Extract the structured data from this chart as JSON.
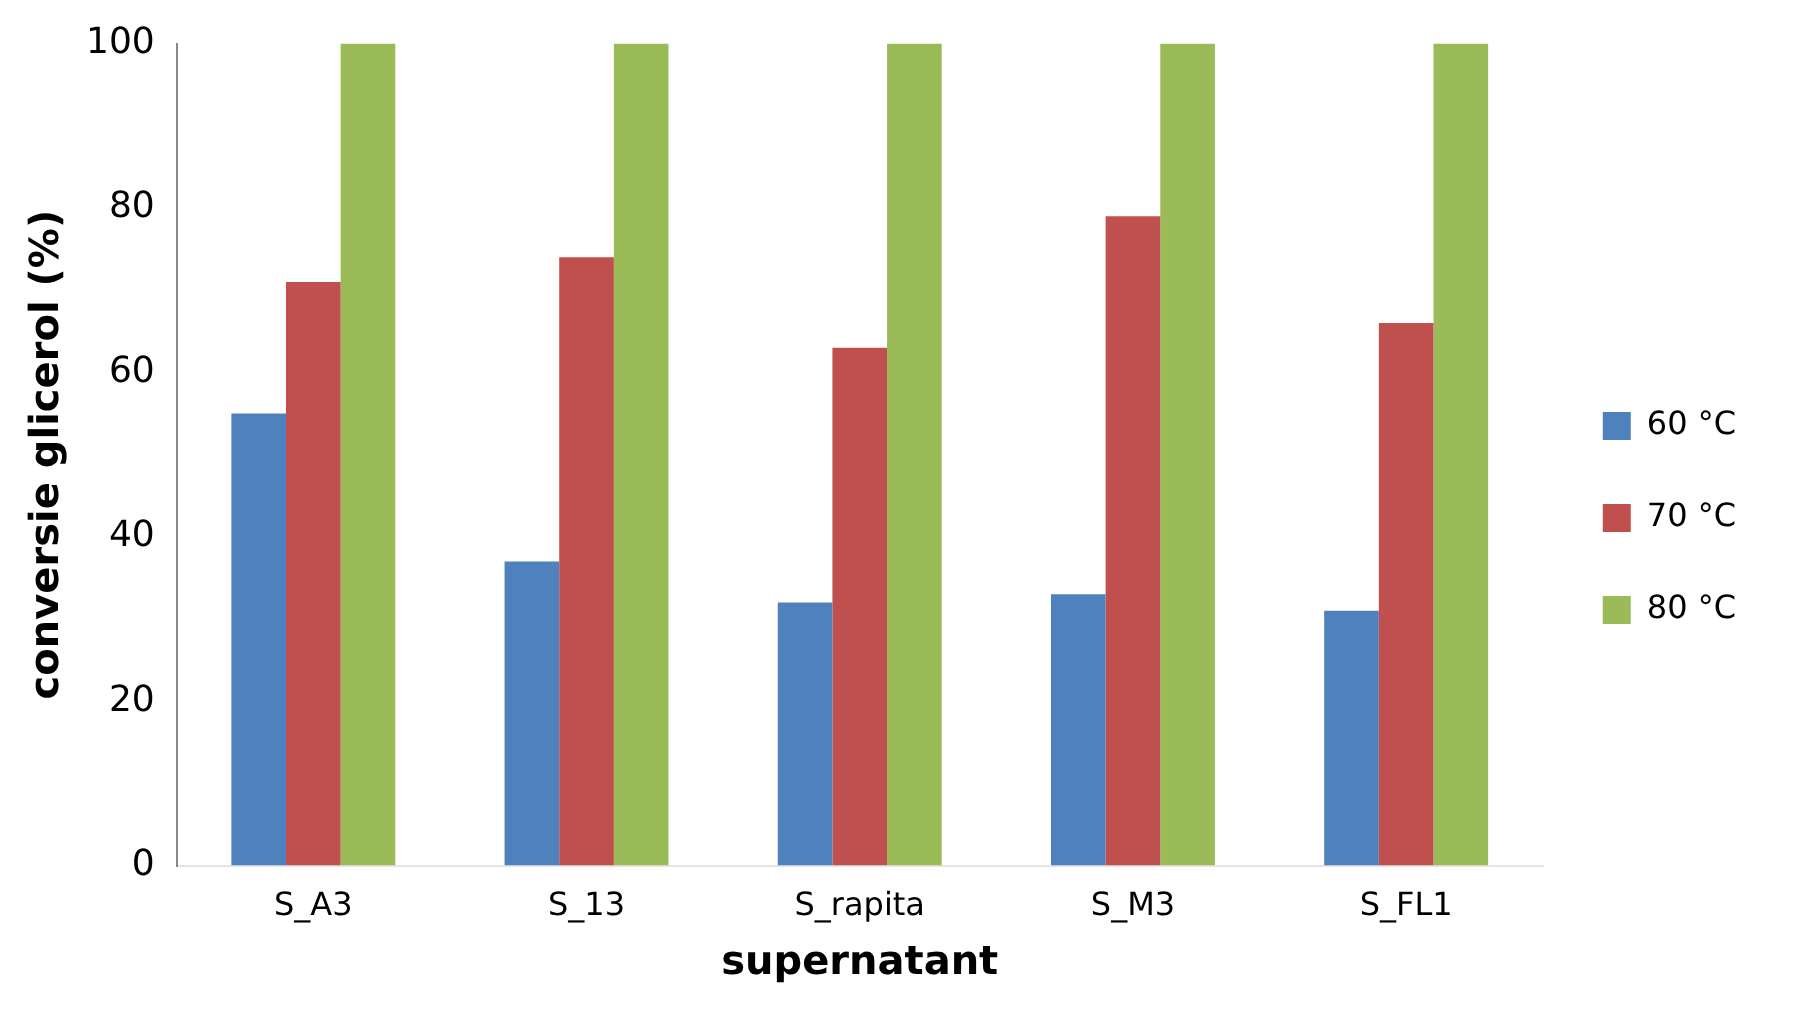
{
  "chart_data": {
    "type": "bar",
    "xlabel": "supernatant",
    "ylabel": "conversie glicerol (%)",
    "categories": [
      "S_A3",
      "S_13",
      "S_rapita",
      "S_M3",
      "S_FL1"
    ],
    "series": [
      {
        "name": "60 °C",
        "color": "#4f81bd",
        "values": [
          55,
          37,
          32,
          33,
          31
        ]
      },
      {
        "name": "70 °C",
        "color": "#c0504d",
        "values": [
          71,
          74,
          63,
          79,
          66
        ]
      },
      {
        "name": "80 °C",
        "color": "#9bbb59",
        "values": [
          100,
          100,
          100,
          100,
          100
        ]
      }
    ],
    "ylim": [
      0,
      100
    ],
    "yticks": [
      0,
      20,
      40,
      60,
      80,
      100
    ],
    "grid": false,
    "legend": "right"
  }
}
